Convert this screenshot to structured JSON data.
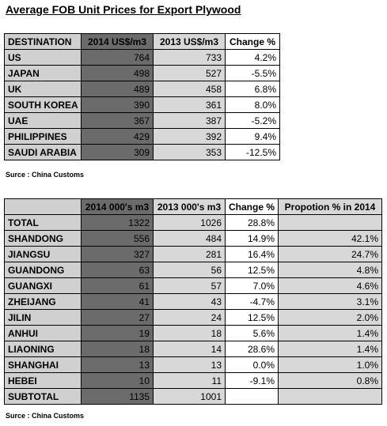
{
  "title": "Average FOB Unit Prices for Export Plywood",
  "table1": {
    "headers": [
      "DESTINATION",
      "2014 US$/m3",
      "2013 US$/m3",
      "Change %"
    ],
    "rows": [
      [
        "US",
        "764",
        "733",
        "4.2%"
      ],
      [
        "JAPAN",
        "498",
        "527",
        "-5.5%"
      ],
      [
        "UK",
        "489",
        "458",
        "6.8%"
      ],
      [
        "SOUTH KOREA",
        "390",
        "361",
        "8.0%"
      ],
      [
        "UAE",
        "367",
        "387",
        "-5.2%"
      ],
      [
        "PHILIPPINES",
        "429",
        "392",
        "9.4%"
      ],
      [
        "SAUDI ARABIA",
        "309",
        "353",
        "-12.5%"
      ]
    ]
  },
  "source1": "Surce : China Customs",
  "table2": {
    "headers": [
      "",
      "2014 000's m3",
      "2013 000's m3",
      "Change %",
      "Propotion % in 2014"
    ],
    "rows": [
      [
        "TOTAL",
        "1322",
        "1026",
        "28.8%",
        ""
      ],
      [
        "SHANDONG",
        "556",
        "484",
        "14.9%",
        "42.1%"
      ],
      [
        "JIANGSU",
        "327",
        "281",
        "16.4%",
        "24.7%"
      ],
      [
        "GUANDONG",
        "63",
        "56",
        "12.5%",
        "4.8%"
      ],
      [
        "GUANGXI",
        "61",
        "57",
        "7.0%",
        "4.6%"
      ],
      [
        "ZHEIJANG",
        "41",
        "43",
        "-4.7%",
        "3.1%"
      ],
      [
        "JILIN",
        "27",
        "24",
        "12.5%",
        "2.0%"
      ],
      [
        "ANHUI",
        "19",
        "18",
        "5.6%",
        "1.4%"
      ],
      [
        "LIAONING",
        "18",
        "14",
        "28.6%",
        "1.4%"
      ],
      [
        "SHANGHAI",
        "13",
        "13",
        "0.0%",
        "1.0%"
      ],
      [
        "HEBEI",
        "10",
        "11",
        "-9.1%",
        "0.8%"
      ],
      [
        "SUBTOTAL",
        "1135",
        "1001",
        "",
        ""
      ]
    ]
  },
  "source2": "Surce : China Customs"
}
